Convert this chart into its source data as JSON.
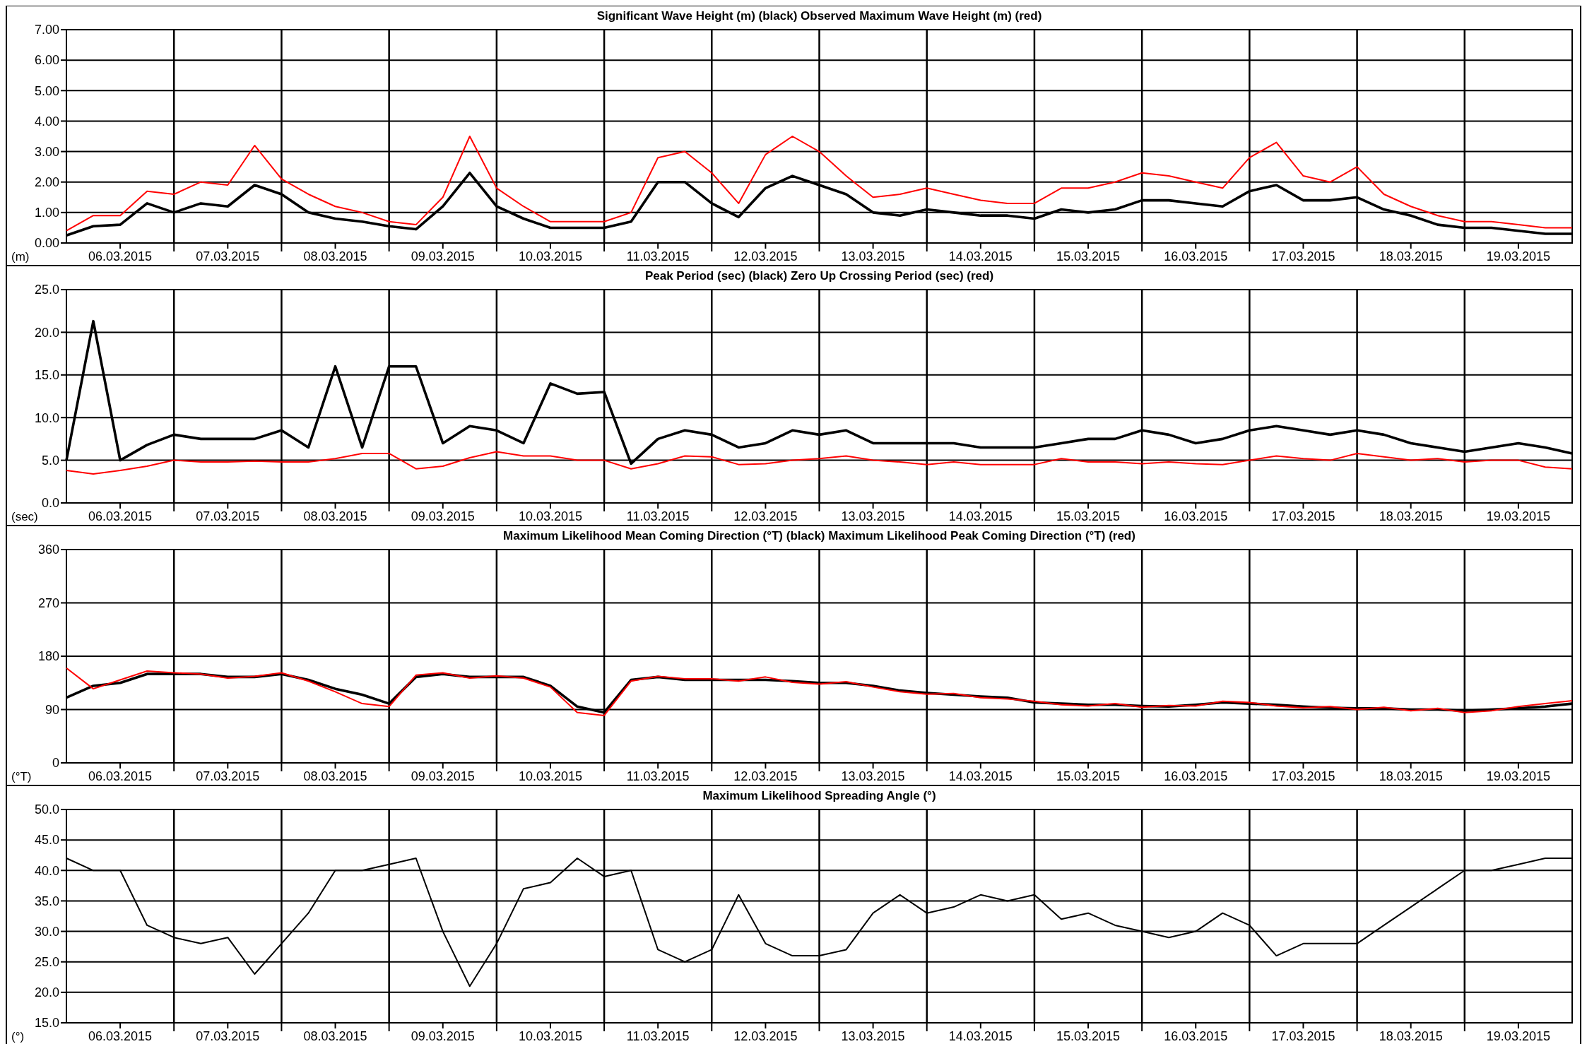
{
  "chart_data": [
    {
      "type": "line",
      "title": "Significant Wave Height (m) (black) Observed Maximum Wave Height (m) (red)",
      "ylabel": "(m)",
      "grid": true,
      "x": [
        "2015-03-06T00:00",
        "2015-03-06T06:00",
        "2015-03-06T12:00",
        "2015-03-06T18:00",
        "2015-03-07T00:00",
        "2015-03-07T06:00",
        "2015-03-07T12:00",
        "2015-03-07T18:00",
        "2015-03-08T00:00",
        "2015-03-08T06:00",
        "2015-03-08T12:00",
        "2015-03-08T18:00",
        "2015-03-09T00:00",
        "2015-03-09T06:00",
        "2015-03-09T12:00",
        "2015-03-09T18:00",
        "2015-03-10T00:00",
        "2015-03-10T06:00",
        "2015-03-10T12:00",
        "2015-03-10T18:00",
        "2015-03-11T00:00",
        "2015-03-11T06:00",
        "2015-03-11T12:00",
        "2015-03-11T18:00",
        "2015-03-12T00:00",
        "2015-03-12T06:00",
        "2015-03-12T12:00",
        "2015-03-12T18:00",
        "2015-03-13T00:00",
        "2015-03-13T06:00",
        "2015-03-13T12:00",
        "2015-03-13T18:00",
        "2015-03-14T00:00",
        "2015-03-14T06:00",
        "2015-03-14T12:00",
        "2015-03-14T18:00",
        "2015-03-15T00:00",
        "2015-03-15T06:00",
        "2015-03-15T12:00",
        "2015-03-15T18:00",
        "2015-03-16T00:00",
        "2015-03-16T06:00",
        "2015-03-16T12:00",
        "2015-03-16T18:00",
        "2015-03-17T00:00",
        "2015-03-17T06:00",
        "2015-03-17T12:00",
        "2015-03-17T18:00",
        "2015-03-18T00:00",
        "2015-03-18T06:00",
        "2015-03-18T12:00",
        "2015-03-18T18:00",
        "2015-03-19T00:00",
        "2015-03-19T06:00",
        "2015-03-19T12:00",
        "2015-03-19T18:00",
        "2015-03-20T00:00"
      ],
      "series": [
        {
          "color": "#000000",
          "values": [
            0.25,
            0.55,
            0.6,
            1.3,
            1.0,
            1.3,
            1.2,
            1.9,
            1.6,
            1.0,
            0.8,
            0.7,
            0.55,
            0.45,
            1.2,
            2.3,
            1.2,
            0.8,
            0.5,
            0.5,
            0.5,
            0.7,
            2.0,
            2.0,
            1.3,
            0.85,
            1.8,
            2.2,
            1.9,
            1.6,
            1.0,
            0.9,
            1.1,
            1.0,
            0.9,
            0.9,
            0.8,
            1.1,
            1.0,
            1.1,
            1.4,
            1.4,
            1.3,
            1.2,
            1.7,
            1.9,
            1.4,
            1.4,
            1.5,
            1.1,
            0.9,
            0.6,
            0.5,
            0.5,
            0.4,
            0.3,
            0.3
          ]
        },
        {
          "color": "#ff0000",
          "values": [
            0.4,
            0.9,
            0.9,
            1.7,
            1.6,
            2.0,
            1.9,
            3.2,
            2.1,
            1.6,
            1.2,
            1.0,
            0.7,
            0.6,
            1.5,
            3.5,
            1.8,
            1.2,
            0.7,
            0.7,
            0.7,
            1.0,
            2.8,
            3.0,
            2.3,
            1.3,
            2.9,
            3.5,
            3.0,
            2.2,
            1.5,
            1.6,
            1.8,
            1.6,
            1.4,
            1.3,
            1.3,
            1.8,
            1.8,
            2.0,
            2.3,
            2.2,
            2.0,
            1.8,
            2.8,
            3.3,
            2.2,
            2.0,
            2.5,
            1.6,
            1.2,
            0.9,
            0.7,
            0.7,
            0.6,
            0.5,
            0.5
          ]
        }
      ],
      "xlim": [
        "2015-03-06T00:00",
        "2015-03-20T00:00"
      ],
      "xticks": [
        {
          "value": "2015-03-06T12:00",
          "label": "06.03.2015"
        },
        {
          "value": "2015-03-07T00:00",
          "label": null
        },
        {
          "value": "2015-03-07T12:00",
          "label": "07.03.2015"
        },
        {
          "value": "2015-03-08T00:00",
          "label": null
        },
        {
          "value": "2015-03-08T12:00",
          "label": "08.03.2015"
        },
        {
          "value": "2015-03-09T00:00",
          "label": null
        },
        {
          "value": "2015-03-09T12:00",
          "label": "09.03.2015"
        },
        {
          "value": "2015-03-10T00:00",
          "label": null
        },
        {
          "value": "2015-03-10T12:00",
          "label": "10.03.2015"
        },
        {
          "value": "2015-03-11T00:00",
          "label": null
        },
        {
          "value": "2015-03-11T12:00",
          "label": "11.03.2015"
        },
        {
          "value": "2015-03-12T00:00",
          "label": null
        },
        {
          "value": "2015-03-12T12:00",
          "label": "12.03.2015"
        },
        {
          "value": "2015-03-13T00:00",
          "label": null
        },
        {
          "value": "2015-03-13T12:00",
          "label": "13.03.2015"
        },
        {
          "value": "2015-03-14T00:00",
          "label": null
        },
        {
          "value": "2015-03-14T12:00",
          "label": "14.03.2015"
        },
        {
          "value": "2015-03-15T00:00",
          "label": null
        },
        {
          "value": "2015-03-15T12:00",
          "label": "15.03.2015"
        },
        {
          "value": "2015-03-16T00:00",
          "label": null
        },
        {
          "value": "2015-03-16T12:00",
          "label": "16.03.2015"
        },
        {
          "value": "2015-03-17T00:00",
          "label": null
        },
        {
          "value": "2015-03-17T12:00",
          "label": "17.03.2015"
        },
        {
          "value": "2015-03-18T00:00",
          "label": null
        },
        {
          "value": "2015-03-18T12:00",
          "label": "18.03.2015"
        },
        {
          "value": "2015-03-19T00:00",
          "label": null
        },
        {
          "value": "2015-03-19T12:00",
          "label": "19.03.2015"
        }
      ],
      "ylim": [
        0,
        7
      ],
      "yticks": [
        {
          "value": 0,
          "label": "0.00"
        },
        {
          "value": 1,
          "label": "1.00"
        },
        {
          "value": 2,
          "label": "2.00"
        },
        {
          "value": 3,
          "label": "3.00"
        },
        {
          "value": 4,
          "label": "4.00"
        },
        {
          "value": 5,
          "label": "5.00"
        },
        {
          "value": 6,
          "label": "6.00"
        },
        {
          "value": 7,
          "label": "7.00"
        }
      ]
    },
    {
      "type": "line",
      "title": "Peak Period (sec) (black) Zero Up Crossing Period (sec) (red)",
      "ylabel": "(sec)",
      "grid": true,
      "x": [
        "2015-03-06T00:00",
        "2015-03-06T06:00",
        "2015-03-06T12:00",
        "2015-03-06T18:00",
        "2015-03-07T00:00",
        "2015-03-07T06:00",
        "2015-03-07T12:00",
        "2015-03-07T18:00",
        "2015-03-08T00:00",
        "2015-03-08T06:00",
        "2015-03-08T12:00",
        "2015-03-08T18:00",
        "2015-03-09T00:00",
        "2015-03-09T06:00",
        "2015-03-09T12:00",
        "2015-03-09T18:00",
        "2015-03-10T00:00",
        "2015-03-10T06:00",
        "2015-03-10T12:00",
        "2015-03-10T18:00",
        "2015-03-11T00:00",
        "2015-03-11T06:00",
        "2015-03-11T12:00",
        "2015-03-11T18:00",
        "2015-03-12T00:00",
        "2015-03-12T06:00",
        "2015-03-12T12:00",
        "2015-03-12T18:00",
        "2015-03-13T00:00",
        "2015-03-13T06:00",
        "2015-03-13T12:00",
        "2015-03-13T18:00",
        "2015-03-14T00:00",
        "2015-03-14T06:00",
        "2015-03-14T12:00",
        "2015-03-14T18:00",
        "2015-03-15T00:00",
        "2015-03-15T06:00",
        "2015-03-15T12:00",
        "2015-03-15T18:00",
        "2015-03-16T00:00",
        "2015-03-16T06:00",
        "2015-03-16T12:00",
        "2015-03-16T18:00",
        "2015-03-17T00:00",
        "2015-03-17T06:00",
        "2015-03-17T12:00",
        "2015-03-17T18:00",
        "2015-03-18T00:00",
        "2015-03-18T06:00",
        "2015-03-18T12:00",
        "2015-03-18T18:00",
        "2015-03-19T00:00",
        "2015-03-19T06:00",
        "2015-03-19T12:00",
        "2015-03-19T18:00",
        "2015-03-20T00:00"
      ],
      "series": [
        {
          "color": "#000000",
          "values": [
            5.0,
            21.3,
            5.0,
            6.8,
            8.0,
            7.5,
            7.5,
            7.5,
            8.5,
            6.5,
            16.0,
            6.5,
            16.0,
            16.0,
            7.0,
            9.0,
            8.5,
            7.0,
            14.0,
            12.8,
            13.0,
            4.6,
            7.5,
            8.5,
            8.0,
            6.5,
            7.0,
            8.5,
            8.0,
            8.5,
            7.0,
            7.0,
            7.0,
            7.0,
            6.5,
            6.5,
            6.5,
            7.0,
            7.5,
            7.5,
            8.5,
            8.0,
            7.0,
            7.5,
            8.5,
            9.0,
            8.5,
            8.0,
            8.5,
            8.0,
            7.0,
            6.5,
            6.0,
            6.5,
            7.0,
            6.5,
            5.8
          ]
        },
        {
          "color": "#ff0000",
          "values": [
            3.8,
            3.4,
            3.8,
            4.3,
            5.0,
            4.8,
            4.8,
            4.9,
            4.8,
            4.8,
            5.2,
            5.8,
            5.8,
            4.0,
            4.3,
            5.3,
            6.0,
            5.5,
            5.5,
            5.0,
            5.0,
            4.0,
            4.6,
            5.5,
            5.4,
            4.5,
            4.6,
            5.0,
            5.2,
            5.5,
            5.0,
            4.8,
            4.5,
            4.8,
            4.5,
            4.5,
            4.5,
            5.2,
            4.8,
            4.8,
            4.6,
            4.8,
            4.6,
            4.5,
            5.0,
            5.5,
            5.2,
            5.0,
            5.8,
            5.4,
            5.0,
            5.2,
            4.8,
            5.0,
            5.0,
            4.2,
            4.0
          ]
        }
      ],
      "xlim": [
        "2015-03-06T00:00",
        "2015-03-20T00:00"
      ],
      "xticks": [
        {
          "value": "2015-03-06T12:00",
          "label": "06.03.2015"
        },
        {
          "value": "2015-03-07T00:00",
          "label": null
        },
        {
          "value": "2015-03-07T12:00",
          "label": "07.03.2015"
        },
        {
          "value": "2015-03-08T00:00",
          "label": null
        },
        {
          "value": "2015-03-08T12:00",
          "label": "08.03.2015"
        },
        {
          "value": "2015-03-09T00:00",
          "label": null
        },
        {
          "value": "2015-03-09T12:00",
          "label": "09.03.2015"
        },
        {
          "value": "2015-03-10T00:00",
          "label": null
        },
        {
          "value": "2015-03-10T12:00",
          "label": "10.03.2015"
        },
        {
          "value": "2015-03-11T00:00",
          "label": null
        },
        {
          "value": "2015-03-11T12:00",
          "label": "11.03.2015"
        },
        {
          "value": "2015-03-12T00:00",
          "label": null
        },
        {
          "value": "2015-03-12T12:00",
          "label": "12.03.2015"
        },
        {
          "value": "2015-03-13T00:00",
          "label": null
        },
        {
          "value": "2015-03-13T12:00",
          "label": "13.03.2015"
        },
        {
          "value": "2015-03-14T00:00",
          "label": null
        },
        {
          "value": "2015-03-14T12:00",
          "label": "14.03.2015"
        },
        {
          "value": "2015-03-15T00:00",
          "label": null
        },
        {
          "value": "2015-03-15T12:00",
          "label": "15.03.2015"
        },
        {
          "value": "2015-03-16T00:00",
          "label": null
        },
        {
          "value": "2015-03-16T12:00",
          "label": "16.03.2015"
        },
        {
          "value": "2015-03-17T00:00",
          "label": null
        },
        {
          "value": "2015-03-17T12:00",
          "label": "17.03.2015"
        },
        {
          "value": "2015-03-18T00:00",
          "label": null
        },
        {
          "value": "2015-03-18T12:00",
          "label": "18.03.2015"
        },
        {
          "value": "2015-03-19T00:00",
          "label": null
        },
        {
          "value": "2015-03-19T12:00",
          "label": "19.03.2015"
        }
      ],
      "ylim": [
        0,
        25
      ],
      "yticks": [
        {
          "value": 0,
          "label": "0.0"
        },
        {
          "value": 5,
          "label": "5.0"
        },
        {
          "value": 10,
          "label": "10.0"
        },
        {
          "value": 15,
          "label": "15.0"
        },
        {
          "value": 20,
          "label": "20.0"
        },
        {
          "value": 25,
          "label": "25.0"
        }
      ]
    },
    {
      "type": "line",
      "title": "Maximum Likelihood Mean Coming Direction (°T) (black) Maximum Likelihood Peak Coming Direction (°T) (red)",
      "ylabel": "(°T)",
      "grid": true,
      "x": [
        "2015-03-06T00:00",
        "2015-03-06T06:00",
        "2015-03-06T12:00",
        "2015-03-06T18:00",
        "2015-03-07T00:00",
        "2015-03-07T06:00",
        "2015-03-07T12:00",
        "2015-03-07T18:00",
        "2015-03-08T00:00",
        "2015-03-08T06:00",
        "2015-03-08T12:00",
        "2015-03-08T18:00",
        "2015-03-09T00:00",
        "2015-03-09T06:00",
        "2015-03-09T12:00",
        "2015-03-09T18:00",
        "2015-03-10T00:00",
        "2015-03-10T06:00",
        "2015-03-10T12:00",
        "2015-03-10T18:00",
        "2015-03-11T00:00",
        "2015-03-11T06:00",
        "2015-03-11T12:00",
        "2015-03-11T18:00",
        "2015-03-12T00:00",
        "2015-03-12T06:00",
        "2015-03-12T12:00",
        "2015-03-12T18:00",
        "2015-03-13T00:00",
        "2015-03-13T06:00",
        "2015-03-13T12:00",
        "2015-03-13T18:00",
        "2015-03-14T00:00",
        "2015-03-14T06:00",
        "2015-03-14T12:00",
        "2015-03-14T18:00",
        "2015-03-15T00:00",
        "2015-03-15T06:00",
        "2015-03-15T12:00",
        "2015-03-15T18:00",
        "2015-03-16T00:00",
        "2015-03-16T06:00",
        "2015-03-16T12:00",
        "2015-03-16T18:00",
        "2015-03-17T00:00",
        "2015-03-17T06:00",
        "2015-03-17T12:00",
        "2015-03-17T18:00",
        "2015-03-18T00:00",
        "2015-03-18T06:00",
        "2015-03-18T12:00",
        "2015-03-18T18:00",
        "2015-03-19T00:00",
        "2015-03-19T06:00",
        "2015-03-19T12:00",
        "2015-03-19T18:00",
        "2015-03-20T00:00"
      ],
      "series": [
        {
          "color": "#000000",
          "values": [
            110,
            130,
            135,
            150,
            150,
            150,
            145,
            145,
            150,
            140,
            125,
            115,
            100,
            145,
            150,
            145,
            145,
            145,
            130,
            95,
            85,
            140,
            145,
            140,
            140,
            140,
            140,
            138,
            135,
            135,
            130,
            122,
            118,
            115,
            112,
            110,
            102,
            100,
            98,
            98,
            96,
            95,
            98,
            102,
            100,
            98,
            95,
            93,
            92,
            92,
            90,
            90,
            88,
            90,
            92,
            95,
            100
          ]
        },
        {
          "color": "#ff0000",
          "values": [
            160,
            125,
            140,
            155,
            152,
            150,
            143,
            146,
            152,
            138,
            120,
            100,
            95,
            148,
            152,
            143,
            147,
            143,
            128,
            85,
            80,
            138,
            146,
            142,
            142,
            138,
            145,
            136,
            133,
            137,
            128,
            120,
            116,
            117,
            110,
            108,
            104,
            98,
            96,
            100,
            94,
            97,
            96,
            104,
            102,
            96,
            93,
            95,
            90,
            94,
            88,
            92,
            85,
            88,
            95,
            100,
            105
          ]
        }
      ],
      "xlim": [
        "2015-03-06T00:00",
        "2015-03-20T00:00"
      ],
      "xticks": [
        {
          "value": "2015-03-06T12:00",
          "label": "06.03.2015"
        },
        {
          "value": "2015-03-07T00:00",
          "label": null
        },
        {
          "value": "2015-03-07T12:00",
          "label": "07.03.2015"
        },
        {
          "value": "2015-03-08T00:00",
          "label": null
        },
        {
          "value": "2015-03-08T12:00",
          "label": "08.03.2015"
        },
        {
          "value": "2015-03-09T00:00",
          "label": null
        },
        {
          "value": "2015-03-09T12:00",
          "label": "09.03.2015"
        },
        {
          "value": "2015-03-10T00:00",
          "label": null
        },
        {
          "value": "2015-03-10T12:00",
          "label": "10.03.2015"
        },
        {
          "value": "2015-03-11T00:00",
          "label": null
        },
        {
          "value": "2015-03-11T12:00",
          "label": "11.03.2015"
        },
        {
          "value": "2015-03-12T00:00",
          "label": null
        },
        {
          "value": "2015-03-12T12:00",
          "label": "12.03.2015"
        },
        {
          "value": "2015-03-13T00:00",
          "label": null
        },
        {
          "value": "2015-03-13T12:00",
          "label": "13.03.2015"
        },
        {
          "value": "2015-03-14T00:00",
          "label": null
        },
        {
          "value": "2015-03-14T12:00",
          "label": "14.03.2015"
        },
        {
          "value": "2015-03-15T00:00",
          "label": null
        },
        {
          "value": "2015-03-15T12:00",
          "label": "15.03.2015"
        },
        {
          "value": "2015-03-16T00:00",
          "label": null
        },
        {
          "value": "2015-03-16T12:00",
          "label": "16.03.2015"
        },
        {
          "value": "2015-03-17T00:00",
          "label": null
        },
        {
          "value": "2015-03-17T12:00",
          "label": "17.03.2015"
        },
        {
          "value": "2015-03-18T00:00",
          "label": null
        },
        {
          "value": "2015-03-18T12:00",
          "label": "18.03.2015"
        },
        {
          "value": "2015-03-19T00:00",
          "label": null
        },
        {
          "value": "2015-03-19T12:00",
          "label": "19.03.2015"
        }
      ],
      "ylim": [
        0,
        360
      ],
      "yticks": [
        0,
        90,
        180,
        270,
        360
      ]
    },
    {
      "type": "line",
      "title": "Maximum Likelihood Spreading Angle (°)",
      "ylabel": "(°)",
      "grid": true,
      "x": [
        "2015-03-06T00:00",
        "2015-03-06T06:00",
        "2015-03-06T12:00",
        "2015-03-06T18:00",
        "2015-03-07T00:00",
        "2015-03-07T06:00",
        "2015-03-07T12:00",
        "2015-03-07T18:00",
        "2015-03-08T00:00",
        "2015-03-08T06:00",
        "2015-03-08T12:00",
        "2015-03-08T18:00",
        "2015-03-09T00:00",
        "2015-03-09T06:00",
        "2015-03-09T12:00",
        "2015-03-09T18:00",
        "2015-03-10T00:00",
        "2015-03-10T06:00",
        "2015-03-10T12:00",
        "2015-03-10T18:00",
        "2015-03-11T00:00",
        "2015-03-11T06:00",
        "2015-03-11T12:00",
        "2015-03-11T18:00",
        "2015-03-12T00:00",
        "2015-03-12T06:00",
        "2015-03-12T12:00",
        "2015-03-12T18:00",
        "2015-03-13T00:00",
        "2015-03-13T06:00",
        "2015-03-13T12:00",
        "2015-03-13T18:00",
        "2015-03-14T00:00",
        "2015-03-14T06:00",
        "2015-03-14T12:00",
        "2015-03-14T18:00",
        "2015-03-15T00:00",
        "2015-03-15T06:00",
        "2015-03-15T12:00",
        "2015-03-15T18:00",
        "2015-03-16T00:00",
        "2015-03-16T06:00",
        "2015-03-16T12:00",
        "2015-03-16T18:00",
        "2015-03-17T00:00",
        "2015-03-17T06:00",
        "2015-03-17T12:00",
        "2015-03-17T18:00",
        "2015-03-18T00:00",
        "2015-03-18T06:00",
        "2015-03-18T12:00",
        "2015-03-18T18:00",
        "2015-03-19T00:00",
        "2015-03-19T06:00",
        "2015-03-19T12:00",
        "2015-03-19T18:00",
        "2015-03-20T00:00"
      ],
      "series": [
        {
          "color": "#000000",
          "values": [
            42,
            40,
            40,
            31,
            29,
            28,
            29,
            23,
            28,
            33,
            40,
            40,
            41,
            42,
            30,
            21,
            28,
            37,
            38,
            42,
            39,
            40,
            27,
            25,
            27,
            36,
            28,
            26,
            26,
            27,
            33,
            36,
            33,
            34,
            36,
            35,
            36,
            32,
            33,
            31,
            30,
            29,
            30,
            33,
            31,
            26,
            28,
            28,
            28,
            31,
            34,
            37,
            40,
            40,
            41,
            42,
            42
          ]
        }
      ],
      "xlim": [
        "2015-03-06T00:00",
        "2015-03-20T00:00"
      ],
      "xticks": [
        {
          "value": "2015-03-06T12:00",
          "label": "06.03.2015"
        },
        {
          "value": "2015-03-07T00:00",
          "label": null
        },
        {
          "value": "2015-03-07T12:00",
          "label": "07.03.2015"
        },
        {
          "value": "2015-03-08T00:00",
          "label": null
        },
        {
          "value": "2015-03-08T12:00",
          "label": "08.03.2015"
        },
        {
          "value": "2015-03-09T00:00",
          "label": null
        },
        {
          "value": "2015-03-09T12:00",
          "label": "09.03.2015"
        },
        {
          "value": "2015-03-10T00:00",
          "label": null
        },
        {
          "value": "2015-03-10T12:00",
          "label": "10.03.2015"
        },
        {
          "value": "2015-03-11T00:00",
          "label": null
        },
        {
          "value": "2015-03-11T12:00",
          "label": "11.03.2015"
        },
        {
          "value": "2015-03-12T00:00",
          "label": null
        },
        {
          "value": "2015-03-12T12:00",
          "label": "12.03.2015"
        },
        {
          "value": "2015-03-13T00:00",
          "label": null
        },
        {
          "value": "2015-03-13T12:00",
          "label": "13.03.2015"
        },
        {
          "value": "2015-03-14T00:00",
          "label": null
        },
        {
          "value": "2015-03-14T12:00",
          "label": "14.03.2015"
        },
        {
          "value": "2015-03-15T00:00",
          "label": null
        },
        {
          "value": "2015-03-15T12:00",
          "label": "15.03.2015"
        },
        {
          "value": "2015-03-16T00:00",
          "label": null
        },
        {
          "value": "2015-03-16T12:00",
          "label": "16.03.2015"
        },
        {
          "value": "2015-03-17T00:00",
          "label": null
        },
        {
          "value": "2015-03-17T12:00",
          "label": "17.03.2015"
        },
        {
          "value": "2015-03-18T00:00",
          "label": null
        },
        {
          "value": "2015-03-18T12:00",
          "label": "18.03.2015"
        },
        {
          "value": "2015-03-19T00:00",
          "label": null
        },
        {
          "value": "2015-03-19T12:00",
          "label": "19.03.2015"
        }
      ],
      "ylim": [
        15,
        50
      ],
      "yticks": [
        {
          "value": 15,
          "label": "15.0"
        },
        {
          "value": 20,
          "label": "20.0"
        },
        {
          "value": 25,
          "label": "25.0"
        },
        {
          "value": 30,
          "label": "30.0"
        },
        {
          "value": 35,
          "label": "35.0"
        },
        {
          "value": 40,
          "label": "40.0"
        },
        {
          "value": 45,
          "label": "45.0"
        },
        {
          "value": 50,
          "label": "50.0"
        }
      ]
    }
  ]
}
